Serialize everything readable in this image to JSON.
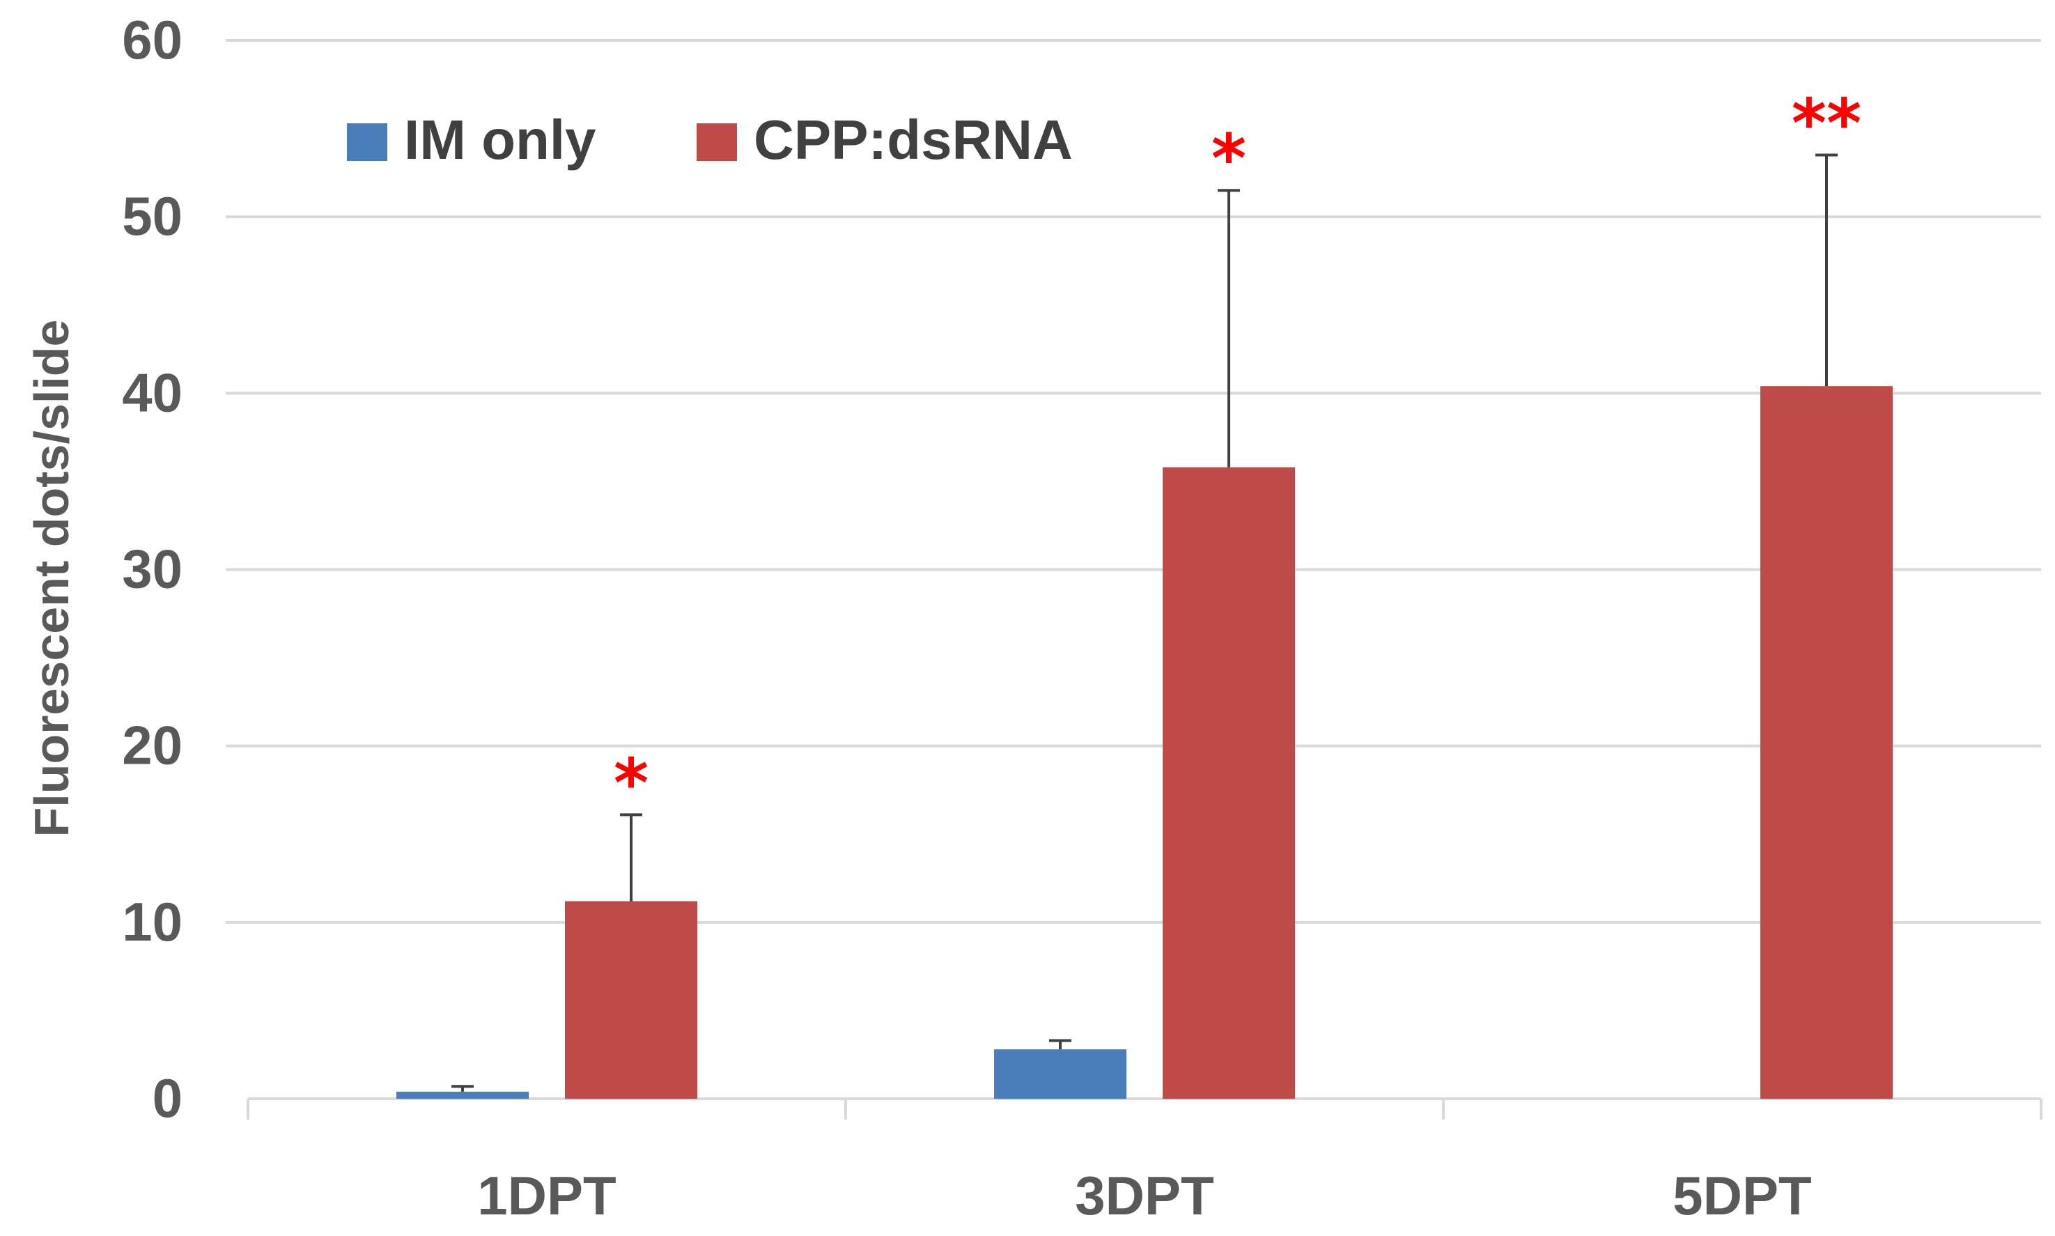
{
  "chart_data": {
    "type": "bar",
    "categories": [
      "1DPT",
      "3DPT",
      "5DPT"
    ],
    "series": [
      {
        "name": "IM only",
        "color": "#4a7ebb",
        "values": [
          0.4,
          2.8,
          0
        ],
        "error": [
          0.3,
          0.5,
          0
        ]
      },
      {
        "name": "CPP:dsRNA",
        "color": "#be4b48",
        "values": [
          11.2,
          35.8,
          40.4
        ],
        "error": [
          4.9,
          15.7,
          13.1
        ]
      }
    ],
    "significance": [
      "*",
      "*",
      "**"
    ],
    "xlabel": "",
    "ylabel": "Fluorescent dots/slide",
    "ylim": [
      0,
      60
    ],
    "yticks": [
      "0",
      "10",
      "20",
      "30",
      "40",
      "50",
      "60"
    ],
    "grid": true,
    "legend_position": "top-left",
    "error_bar_color": "#404040",
    "significance_color": "#ff0000"
  }
}
